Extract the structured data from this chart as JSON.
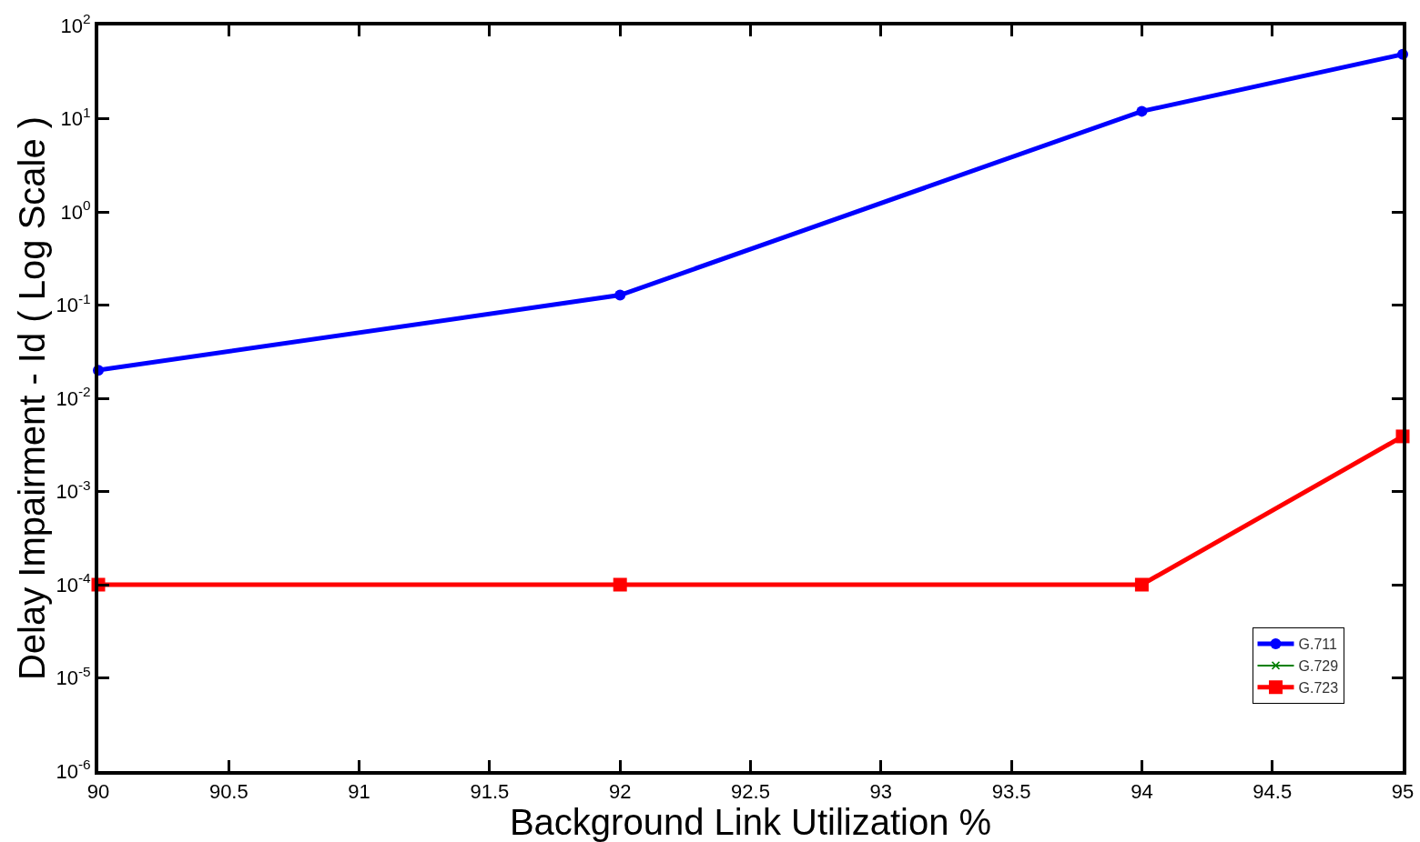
{
  "chart_data": {
    "type": "line",
    "xlabel": "Background Link Utilization %",
    "ylabel": "Delay Impairment - Id ( Log Scale )",
    "x": [
      90,
      92,
      94,
      95
    ],
    "series": [
      {
        "name": "G.711",
        "color": "#0000ff",
        "marker": "circle",
        "values": [
          0.02,
          0.128,
          12,
          49
        ]
      },
      {
        "name": "G.729",
        "color": "#008000",
        "marker": "cross",
        "values": [
          null,
          null,
          null,
          null
        ]
      },
      {
        "name": "G.723",
        "color": "#ff0000",
        "marker": "square",
        "values": [
          0.0001,
          0.0001,
          0.0001,
          0.0039
        ]
      }
    ],
    "xlim": [
      90,
      95
    ],
    "xticks": [
      90,
      90.5,
      91,
      91.5,
      92,
      92.5,
      93,
      93.5,
      94,
      94.5,
      95
    ],
    "ylim": [
      1e-06,
      100
    ],
    "yticks": [
      {
        "value": 1e-06,
        "label": "10$^{-6}$"
      },
      {
        "value": 1e-05,
        "label": "10$^{-5}$"
      },
      {
        "value": 0.0001,
        "label": "10$^{-4}$"
      },
      {
        "value": 0.001,
        "label": "10$^{-3}$"
      },
      {
        "value": 0.01,
        "label": "10$^{-2}$"
      },
      {
        "value": 0.1,
        "label": "10$^{-1}$"
      },
      {
        "value": 1,
        "label": "10$^{0}$"
      },
      {
        "value": 10,
        "label": "10$^{1}$"
      },
      {
        "value": 100,
        "label": "10$^{2}$"
      }
    ],
    "log": "y",
    "grid": false,
    "legend": "bottom right",
    "line_style": "solid"
  }
}
